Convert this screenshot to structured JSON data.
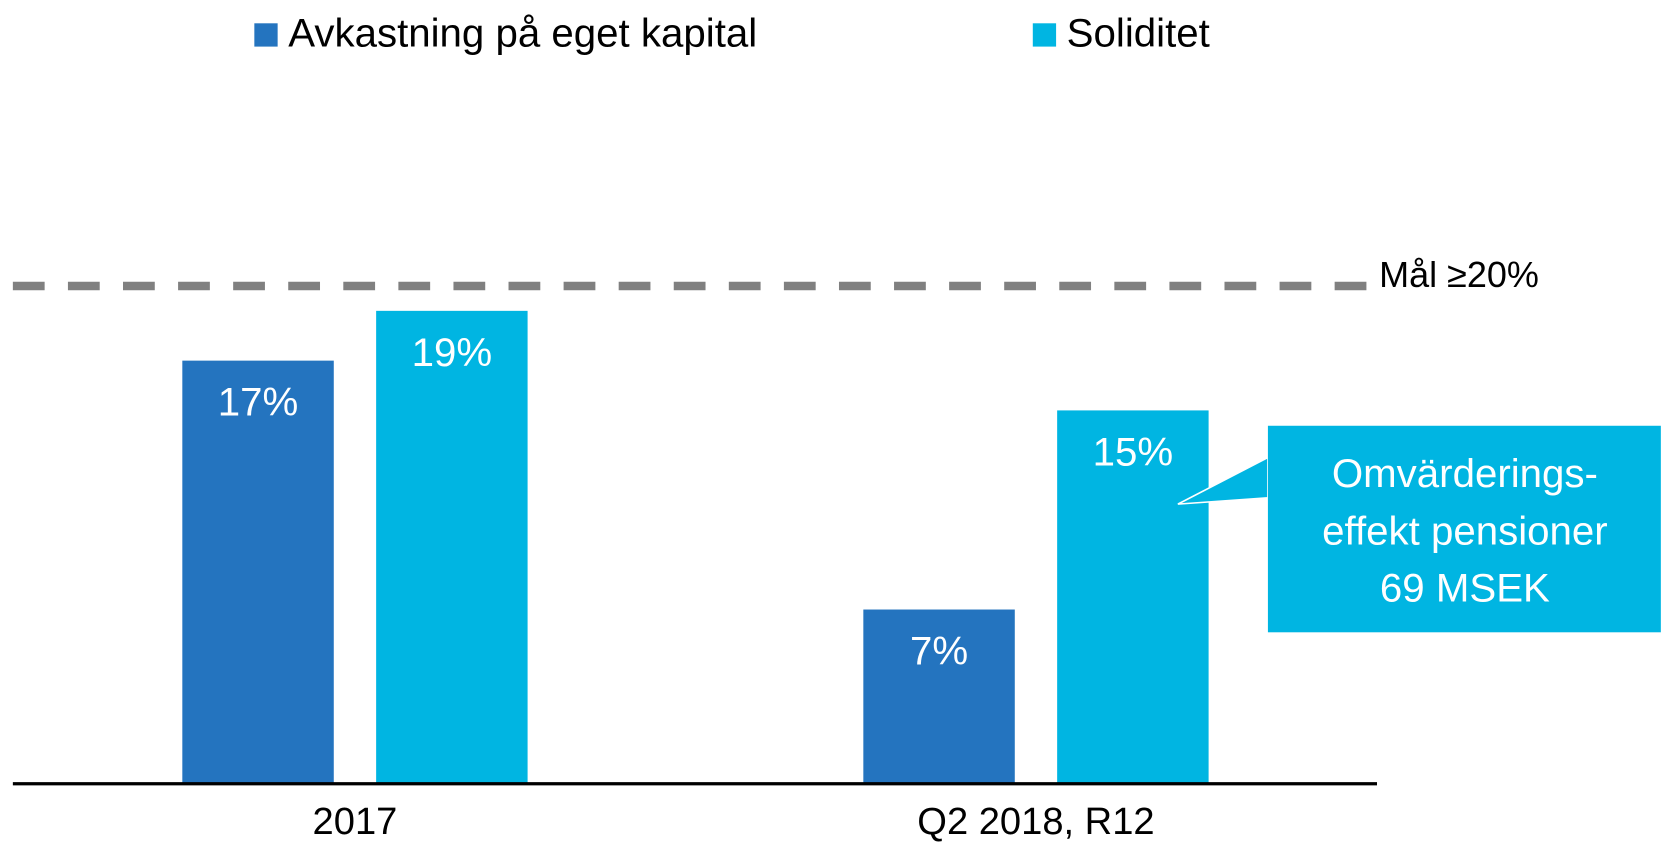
{
  "chart_data": {
    "type": "bar",
    "categories": [
      "2017",
      "Q2 2018, R12"
    ],
    "series": [
      {
        "name": "Avkastning på eget kapital",
        "color": "#2474bf",
        "values": [
          17,
          7
        ],
        "value_labels": [
          "17%",
          "7%"
        ]
      },
      {
        "name": "Soliditet",
        "color": "#00b5e2",
        "values": [
          19,
          15
        ],
        "value_labels": [
          "19%",
          "15%"
        ]
      }
    ],
    "target": {
      "value": 20,
      "label": "Mål ≥20%",
      "color": "#808080"
    },
    "annotation": {
      "lines": [
        "Omvärderings-",
        "effekt pensioner",
        "69 MSEK"
      ],
      "color": "#00b5e2"
    }
  }
}
